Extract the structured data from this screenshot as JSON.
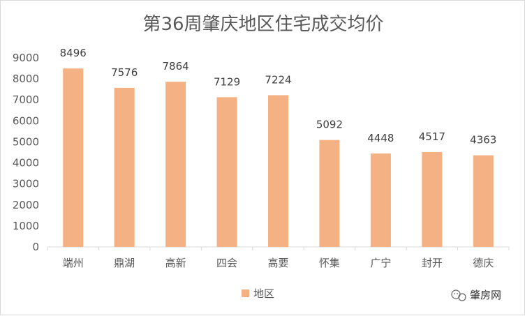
{
  "chart_data": {
    "type": "bar",
    "title": "第36周肇庆地区住宅成交均价",
    "categories": [
      "端州",
      "鼎湖",
      "高新",
      "四会",
      "高要",
      "怀集",
      "广宁",
      "封开",
      "德庆"
    ],
    "series": [
      {
        "name": "地区",
        "values": [
          8496,
          7576,
          7864,
          7129,
          7224,
          5092,
          4448,
          4517,
          4363
        ],
        "color": "#F4B183"
      }
    ],
    "ylim": [
      0,
      9000
    ],
    "yticks": [
      0,
      1000,
      2000,
      3000,
      4000,
      5000,
      6000,
      7000,
      8000,
      9000
    ],
    "grid": false,
    "legend_position": "bottom"
  },
  "watermark": {
    "text": "肇房网",
    "icon": "wechat-icon"
  },
  "colors": {
    "bar": "#F4B183",
    "axis": "#d9d9d9",
    "text": "#595959"
  }
}
